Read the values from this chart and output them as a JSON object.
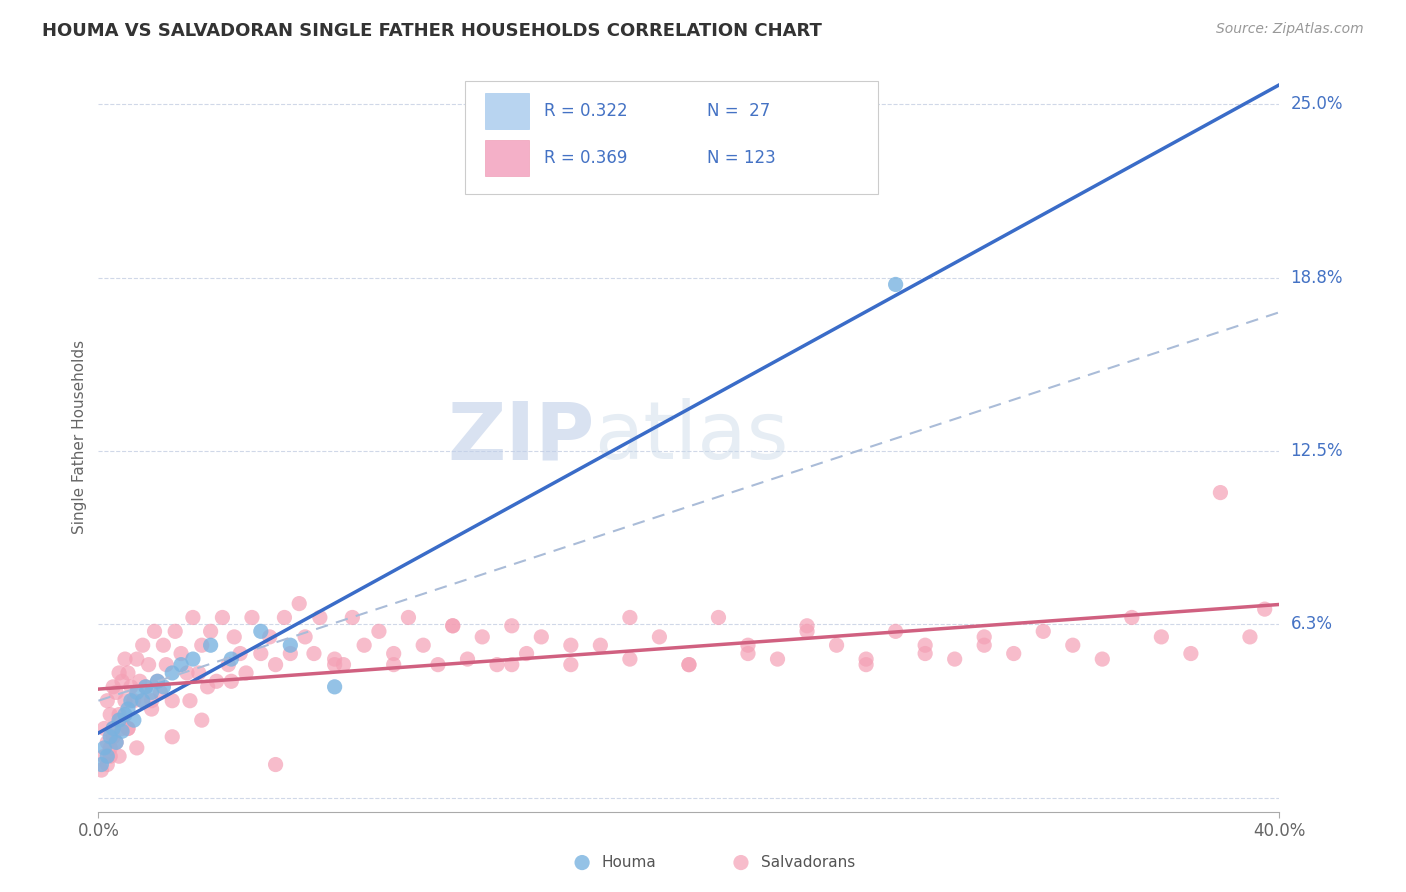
{
  "title": "HOUMA VS SALVADORAN SINGLE FATHER HOUSEHOLDS CORRELATION CHART",
  "source_text": "Source: ZipAtlas.com",
  "ylabel": "Single Father Households",
  "xlim": [
    0.0,
    0.4
  ],
  "ylim": [
    -0.005,
    0.265
  ],
  "background_color": "#ffffff",
  "houma_color": "#7ab3e0",
  "salvadoran_color": "#f4a0b5",
  "houma_line_color": "#3a6cc8",
  "salvadoran_line_color": "#d06080",
  "dash_line_color": "#aabcd8",
  "houma_R": 0.322,
  "houma_N": 27,
  "salvadoran_R": 0.369,
  "salvadoran_N": 123,
  "watermark": "ZIPatlas",
  "watermark_color": "#c8d8f0",
  "ytick_vals": [
    0.0,
    0.0625,
    0.125,
    0.1875,
    0.25
  ],
  "ytick_labels": [
    "",
    "6.3%",
    "12.5%",
    "18.8%",
    "25.0%"
  ],
  "houma_x": [
    0.001,
    0.002,
    0.003,
    0.004,
    0.005,
    0.006,
    0.007,
    0.008,
    0.009,
    0.01,
    0.011,
    0.012,
    0.013,
    0.015,
    0.016,
    0.018,
    0.02,
    0.022,
    0.025,
    0.028,
    0.032,
    0.038,
    0.045,
    0.055,
    0.065,
    0.08,
    0.27
  ],
  "houma_y": [
    0.012,
    0.018,
    0.015,
    0.022,
    0.025,
    0.02,
    0.028,
    0.024,
    0.03,
    0.032,
    0.035,
    0.028,
    0.038,
    0.035,
    0.04,
    0.038,
    0.042,
    0.04,
    0.045,
    0.048,
    0.05,
    0.055,
    0.05,
    0.06,
    0.055,
    0.04,
    0.185
  ],
  "salv_x": [
    0.001,
    0.002,
    0.002,
    0.003,
    0.003,
    0.004,
    0.004,
    0.005,
    0.005,
    0.006,
    0.006,
    0.007,
    0.007,
    0.008,
    0.008,
    0.009,
    0.009,
    0.01,
    0.01,
    0.011,
    0.012,
    0.013,
    0.014,
    0.015,
    0.015,
    0.016,
    0.017,
    0.018,
    0.019,
    0.02,
    0.021,
    0.022,
    0.023,
    0.025,
    0.026,
    0.028,
    0.03,
    0.031,
    0.032,
    0.034,
    0.035,
    0.037,
    0.038,
    0.04,
    0.042,
    0.044,
    0.046,
    0.048,
    0.05,
    0.052,
    0.055,
    0.058,
    0.06,
    0.063,
    0.065,
    0.068,
    0.07,
    0.073,
    0.075,
    0.08,
    0.083,
    0.086,
    0.09,
    0.095,
    0.1,
    0.105,
    0.11,
    0.115,
    0.12,
    0.125,
    0.13,
    0.135,
    0.14,
    0.145,
    0.15,
    0.16,
    0.17,
    0.18,
    0.19,
    0.2,
    0.21,
    0.22,
    0.23,
    0.24,
    0.25,
    0.26,
    0.27,
    0.28,
    0.29,
    0.3,
    0.31,
    0.32,
    0.33,
    0.34,
    0.35,
    0.36,
    0.37,
    0.38,
    0.39,
    0.395,
    0.3,
    0.28,
    0.26,
    0.24,
    0.22,
    0.2,
    0.18,
    0.16,
    0.14,
    0.12,
    0.1,
    0.08,
    0.06,
    0.045,
    0.035,
    0.025,
    0.018,
    0.013,
    0.01,
    0.007,
    0.005,
    0.004,
    0.003
  ],
  "salv_y": [
    0.01,
    0.015,
    0.025,
    0.02,
    0.035,
    0.015,
    0.03,
    0.025,
    0.04,
    0.02,
    0.038,
    0.03,
    0.045,
    0.025,
    0.042,
    0.035,
    0.05,
    0.025,
    0.045,
    0.04,
    0.035,
    0.05,
    0.042,
    0.035,
    0.055,
    0.04,
    0.048,
    0.035,
    0.06,
    0.042,
    0.038,
    0.055,
    0.048,
    0.035,
    0.06,
    0.052,
    0.045,
    0.035,
    0.065,
    0.045,
    0.055,
    0.04,
    0.06,
    0.042,
    0.065,
    0.048,
    0.058,
    0.052,
    0.045,
    0.065,
    0.052,
    0.058,
    0.048,
    0.065,
    0.052,
    0.07,
    0.058,
    0.052,
    0.065,
    0.05,
    0.048,
    0.065,
    0.055,
    0.06,
    0.048,
    0.065,
    0.055,
    0.048,
    0.062,
    0.05,
    0.058,
    0.048,
    0.062,
    0.052,
    0.058,
    0.048,
    0.055,
    0.05,
    0.058,
    0.048,
    0.065,
    0.055,
    0.05,
    0.06,
    0.055,
    0.05,
    0.06,
    0.055,
    0.05,
    0.058,
    0.052,
    0.06,
    0.055,
    0.05,
    0.065,
    0.058,
    0.052,
    0.11,
    0.058,
    0.068,
    0.055,
    0.052,
    0.048,
    0.062,
    0.052,
    0.048,
    0.065,
    0.055,
    0.048,
    0.062,
    0.052,
    0.048,
    0.012,
    0.042,
    0.028,
    0.022,
    0.032,
    0.018,
    0.025,
    0.015,
    0.022,
    0.018,
    0.012
  ]
}
